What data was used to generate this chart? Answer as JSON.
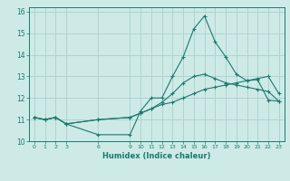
{
  "xlabel": "Humidex (Indice chaleur)",
  "ylabel": "",
  "background_color": "#ceeae7",
  "grid_color": "#aed4d0",
  "line_color": "#1a7a6e",
  "xlim": [
    -0.5,
    23.5
  ],
  "ylim": [
    10,
    16.2
  ],
  "xticks": [
    0,
    1,
    2,
    3,
    6,
    9,
    10,
    11,
    12,
    13,
    14,
    15,
    16,
    17,
    18,
    19,
    20,
    21,
    22,
    23
  ],
  "yticks": [
    10,
    11,
    12,
    13,
    14,
    15,
    16
  ],
  "hours": [
    0,
    1,
    2,
    3,
    6,
    9,
    10,
    11,
    12,
    13,
    14,
    15,
    16,
    17,
    18,
    19,
    20,
    21,
    22,
    23
  ],
  "line1": [
    11.1,
    11.0,
    11.1,
    10.8,
    10.3,
    10.3,
    11.4,
    12.0,
    12.0,
    13.0,
    13.9,
    15.2,
    15.8,
    14.6,
    13.9,
    13.1,
    12.8,
    12.9,
    13.0,
    12.2
  ],
  "line2": [
    11.1,
    11.0,
    11.1,
    10.8,
    11.0,
    11.1,
    11.3,
    11.5,
    11.7,
    11.8,
    12.0,
    12.2,
    12.4,
    12.5,
    12.6,
    12.7,
    12.8,
    12.85,
    11.9,
    11.85
  ],
  "line3": [
    11.1,
    11.0,
    11.1,
    10.8,
    11.0,
    11.1,
    11.3,
    11.5,
    11.8,
    12.2,
    12.7,
    13.0,
    13.1,
    12.9,
    12.7,
    12.6,
    12.5,
    12.4,
    12.3,
    11.85
  ]
}
